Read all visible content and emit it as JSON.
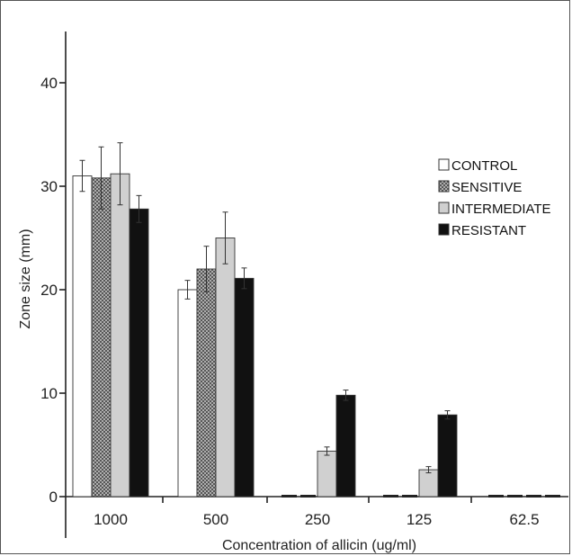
{
  "chart_data": {
    "type": "bar",
    "categories": [
      "1000",
      "500",
      "250",
      "125",
      "62.5"
    ],
    "ylabel": "Zone size (mm)",
    "xlabel": "Concentration of allicin (ug/ml)",
    "ylim": [
      0,
      45
    ],
    "yticks": [
      0,
      10,
      20,
      30,
      40
    ],
    "legend_position": "right",
    "series": [
      {
        "name": "CONTROL",
        "values": [
          31.0,
          20.0,
          0,
          0,
          0
        ],
        "errors": [
          1.5,
          0.9,
          0,
          0,
          0
        ],
        "fill": "#ffffff",
        "pattern": "solid"
      },
      {
        "name": "SENSITIVE",
        "values": [
          30.8,
          22.0,
          0,
          0,
          0
        ],
        "errors": [
          3.0,
          2.2,
          0,
          0,
          0
        ],
        "fill": "#8c8c8c",
        "pattern": "crosshatch"
      },
      {
        "name": "INTERMEDIATE",
        "values": [
          31.2,
          25.0,
          4.4,
          2.6,
          0
        ],
        "errors": [
          3.0,
          2.5,
          0.4,
          0.3,
          0
        ],
        "fill": "#d0d0d0",
        "pattern": "solid"
      },
      {
        "name": "RESISTANT",
        "values": [
          27.8,
          21.1,
          9.8,
          7.9,
          0
        ],
        "errors": [
          1.3,
          1.0,
          0.5,
          0.4,
          0
        ],
        "fill": "#111111",
        "pattern": "solid"
      }
    ]
  }
}
